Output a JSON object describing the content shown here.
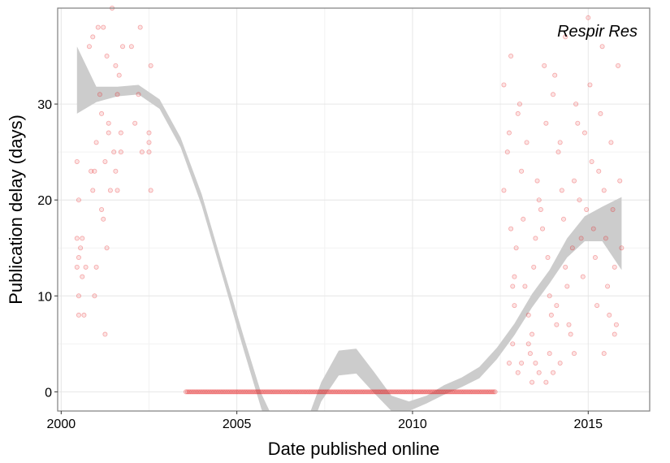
{
  "chart_data": {
    "type": "scatter",
    "title": "",
    "annotation": "Respir Res",
    "xlabel": "Date published online",
    "ylabel": "Publication delay (days)",
    "xlim": [
      1999.9,
      2016.75
    ],
    "ylim": [
      -2,
      40
    ],
    "x_ticks": [
      2000,
      2005,
      2010,
      2015
    ],
    "y_ticks": [
      0,
      10,
      20,
      30
    ],
    "grid": true,
    "point_color": "#e41a1c",
    "ribbon_color": "#cccccc",
    "points": [
      [
        2000.45,
        16
      ],
      [
        2000.5,
        14
      ],
      [
        2000.45,
        13
      ],
      [
        2000.55,
        15
      ],
      [
        2000.6,
        16
      ],
      [
        2000.5,
        10
      ],
      [
        2000.5,
        8
      ],
      [
        2000.65,
        8
      ],
      [
        2000.6,
        12
      ],
      [
        2000.7,
        13
      ],
      [
        2000.5,
        20
      ],
      [
        2000.45,
        24
      ],
      [
        2000.8,
        36
      ],
      [
        2000.85,
        23
      ],
      [
        2000.9,
        21
      ],
      [
        2000.95,
        23
      ],
      [
        2001.0,
        26
      ],
      [
        2001.05,
        38
      ],
      [
        2001.1,
        31
      ],
      [
        2001.15,
        29
      ],
      [
        2001.2,
        38
      ],
      [
        2001.25,
        6
      ],
      [
        2001.3,
        15
      ],
      [
        2001.3,
        35
      ],
      [
        2001.35,
        28
      ],
      [
        2001.35,
        27
      ],
      [
        2001.4,
        21
      ],
      [
        2001.5,
        25
      ],
      [
        2001.55,
        34
      ],
      [
        2001.6,
        31
      ],
      [
        2001.65,
        33
      ],
      [
        2001.7,
        27
      ],
      [
        2001.75,
        36
      ],
      [
        2001.55,
        23
      ],
      [
        2001.6,
        21
      ],
      [
        2001.7,
        25
      ],
      [
        2002.0,
        36
      ],
      [
        2002.1,
        28
      ],
      [
        2002.2,
        31
      ],
      [
        2002.25,
        38
      ],
      [
        2002.3,
        25
      ],
      [
        2002.5,
        27
      ],
      [
        2002.5,
        26
      ],
      [
        2002.5,
        25
      ],
      [
        2002.55,
        21
      ],
      [
        2002.55,
        34
      ],
      [
        2001.15,
        19
      ],
      [
        2000.95,
        10
      ],
      [
        2001.0,
        13
      ],
      [
        2001.2,
        18
      ],
      [
        2001.25,
        24
      ],
      [
        2001.45,
        40
      ],
      [
        2000.9,
        37
      ],
      [
        2012.6,
        21
      ],
      [
        2012.6,
        32
      ],
      [
        2012.7,
        25
      ],
      [
        2012.75,
        27
      ],
      [
        2012.8,
        35
      ],
      [
        2012.8,
        17
      ],
      [
        2012.85,
        11
      ],
      [
        2012.9,
        9
      ],
      [
        2012.9,
        12
      ],
      [
        2012.95,
        15
      ],
      [
        2013.0,
        29
      ],
      [
        2013.05,
        30
      ],
      [
        2013.1,
        23
      ],
      [
        2013.15,
        18
      ],
      [
        2013.2,
        11
      ],
      [
        2013.25,
        26
      ],
      [
        2013.3,
        8
      ],
      [
        2013.3,
        5
      ],
      [
        2013.35,
        4
      ],
      [
        2013.4,
        6
      ],
      [
        2013.45,
        13
      ],
      [
        2013.5,
        16
      ],
      [
        2013.55,
        22
      ],
      [
        2013.6,
        20
      ],
      [
        2013.65,
        19
      ],
      [
        2013.7,
        17
      ],
      [
        2013.75,
        34
      ],
      [
        2013.8,
        28
      ],
      [
        2013.85,
        14
      ],
      [
        2013.9,
        10
      ],
      [
        2013.95,
        8
      ],
      [
        2014.0,
        31
      ],
      [
        2014.05,
        33
      ],
      [
        2014.1,
        9
      ],
      [
        2014.1,
        7
      ],
      [
        2014.15,
        25
      ],
      [
        2014.2,
        26
      ],
      [
        2014.25,
        21
      ],
      [
        2014.3,
        18
      ],
      [
        2014.35,
        13
      ],
      [
        2014.4,
        11
      ],
      [
        2014.45,
        7
      ],
      [
        2014.5,
        6
      ],
      [
        2014.55,
        15
      ],
      [
        2014.6,
        22
      ],
      [
        2014.65,
        30
      ],
      [
        2014.7,
        28
      ],
      [
        2014.75,
        20
      ],
      [
        2014.8,
        16
      ],
      [
        2014.85,
        12
      ],
      [
        2014.9,
        27
      ],
      [
        2014.95,
        19
      ],
      [
        2015.0,
        39
      ],
      [
        2015.05,
        32
      ],
      [
        2015.1,
        24
      ],
      [
        2015.15,
        17
      ],
      [
        2015.2,
        14
      ],
      [
        2015.25,
        9
      ],
      [
        2015.3,
        23
      ],
      [
        2015.35,
        29
      ],
      [
        2015.4,
        36
      ],
      [
        2015.45,
        21
      ],
      [
        2015.5,
        16
      ],
      [
        2015.55,
        11
      ],
      [
        2015.6,
        8
      ],
      [
        2015.65,
        26
      ],
      [
        2015.7,
        19
      ],
      [
        2015.75,
        13
      ],
      [
        2015.8,
        7
      ],
      [
        2015.85,
        34
      ],
      [
        2015.9,
        22
      ],
      [
        2015.95,
        15
      ],
      [
        2013.0,
        2
      ],
      [
        2013.1,
        3
      ],
      [
        2013.4,
        1
      ],
      [
        2013.5,
        3
      ],
      [
        2013.6,
        2
      ],
      [
        2013.8,
        1
      ],
      [
        2013.9,
        4
      ],
      [
        2012.75,
        3
      ],
      [
        2012.85,
        5
      ],
      [
        2014.6,
        4
      ],
      [
        2014.2,
        3
      ],
      [
        2014.0,
        2
      ],
      [
        2015.45,
        4
      ],
      [
        2015.75,
        6
      ],
      [
        2014.35,
        37
      ]
    ],
    "zero_band": {
      "y": 0,
      "segments": [
        [
          2003.55,
          2012.35
        ]
      ],
      "count": 210
    },
    "smooth_curve": [
      [
        2000.45,
        32.5
      ],
      [
        2001.0,
        31.0
      ],
      [
        2001.6,
        31.3
      ],
      [
        2002.2,
        31.5
      ],
      [
        2002.8,
        30.0
      ],
      [
        2003.4,
        26.0
      ],
      [
        2004.0,
        20.0
      ],
      [
        2004.6,
        12.5
      ],
      [
        2005.2,
        5.0
      ],
      [
        2005.7,
        -1.0
      ],
      [
        2006.2,
        -5.0
      ],
      [
        2006.8,
        -6.0
      ],
      [
        2007.4,
        0.0
      ],
      [
        2007.9,
        3.0
      ],
      [
        2008.4,
        3.2
      ],
      [
        2008.9,
        1.0
      ],
      [
        2009.4,
        -1.2
      ],
      [
        2009.9,
        -1.5
      ],
      [
        2010.4,
        -0.8
      ],
      [
        2010.9,
        0.2
      ],
      [
        2011.4,
        1.0
      ],
      [
        2011.9,
        2.0
      ],
      [
        2012.4,
        4.0
      ],
      [
        2012.9,
        6.5
      ],
      [
        2013.4,
        9.5
      ],
      [
        2013.9,
        12.0
      ],
      [
        2014.4,
        15.0
      ],
      [
        2014.9,
        17.0
      ],
      [
        2015.4,
        17.5
      ],
      [
        2015.95,
        16.5
      ]
    ],
    "ribbon_halfwidth": [
      [
        2000.45,
        3.5
      ],
      [
        2001.0,
        0.8
      ],
      [
        2001.6,
        0.5
      ],
      [
        2002.2,
        0.5
      ],
      [
        2002.8,
        0.5
      ],
      [
        2003.4,
        0.5
      ],
      [
        2004.0,
        0.6
      ],
      [
        2004.6,
        0.6
      ],
      [
        2005.2,
        0.7
      ],
      [
        2005.7,
        0.8
      ],
      [
        2006.2,
        0.9
      ],
      [
        2006.8,
        1.0
      ],
      [
        2007.4,
        1.0
      ],
      [
        2007.9,
        1.3
      ],
      [
        2008.4,
        1.3
      ],
      [
        2008.9,
        1.1
      ],
      [
        2009.4,
        0.8
      ],
      [
        2009.9,
        0.5
      ],
      [
        2010.4,
        0.4
      ],
      [
        2010.9,
        0.5
      ],
      [
        2011.4,
        0.5
      ],
      [
        2011.9,
        0.6
      ],
      [
        2012.4,
        0.6
      ],
      [
        2012.9,
        0.6
      ],
      [
        2013.4,
        0.7
      ],
      [
        2013.9,
        0.7
      ],
      [
        2014.4,
        1.0
      ],
      [
        2014.9,
        1.3
      ],
      [
        2015.4,
        1.8
      ],
      [
        2015.95,
        3.8
      ]
    ]
  }
}
